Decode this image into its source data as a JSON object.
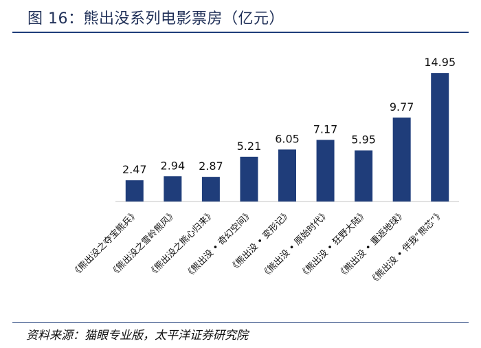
{
  "title": "图 16：熊出没系列电影票房（亿元）",
  "source": "资料来源：猫眼专业版，太平洋证券研究院",
  "colors": {
    "bar": "#1f3d7a",
    "axis": "#d9d9d9",
    "title": "#1f2f57",
    "rule": "#1f3d7a"
  },
  "chart_data": {
    "type": "bar",
    "title": "图 16：熊出没系列电影票房（亿元）",
    "xlabel": "",
    "ylabel": "",
    "categories": [
      "《熊出没之夺宝熊兵》",
      "《熊出没之雪岭熊风》",
      "《熊出没之熊心归来》",
      "《熊出没 • 奇幻空间》",
      "《熊出没 • 变形记》",
      "《熊出没 • 原始时代》",
      "《熊出没 • 狂野大陆》",
      "《熊出没 • 重返地球》",
      "《熊出没 • 伴我“熊芯”》"
    ],
    "values": [
      2.47,
      2.94,
      2.87,
      5.21,
      6.05,
      7.17,
      5.95,
      9.77,
      14.95
    ],
    "data_labels": [
      "2.47",
      "2.94",
      "2.87",
      "5.21",
      "6.05",
      "7.17",
      "5.95",
      "9.77",
      "14.95"
    ],
    "ylim": [
      0,
      16
    ],
    "grid": false,
    "legend": "none"
  }
}
